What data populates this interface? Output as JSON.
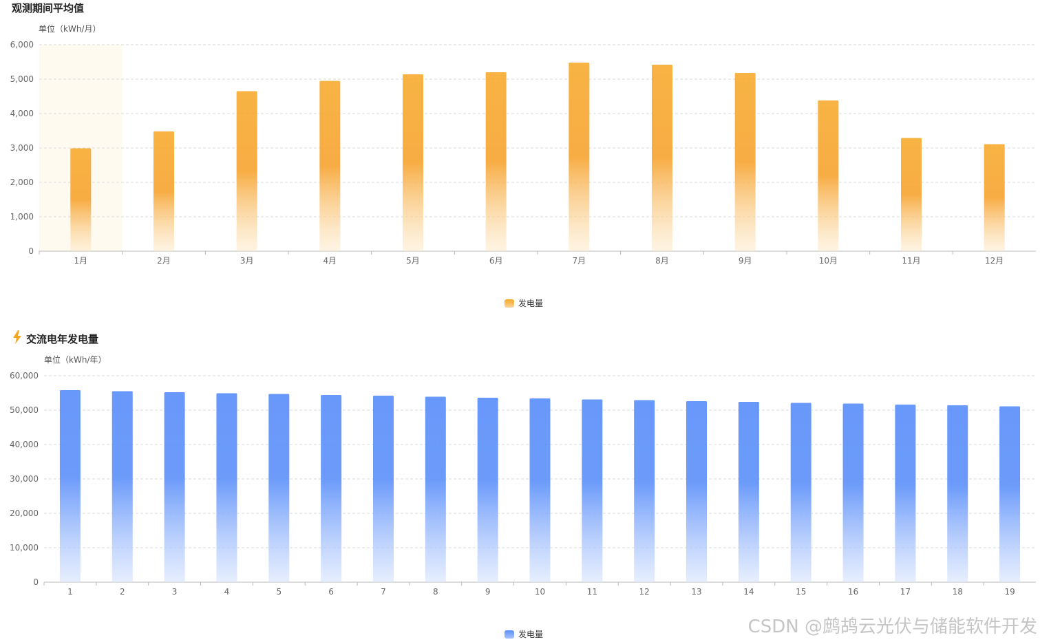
{
  "sections": [
    {
      "title": "观测期间平均值"
    },
    {
      "title": "交流电年发电量"
    }
  ],
  "icons": {
    "section2": "lightning-bolt-icon"
  },
  "colors": {
    "orange": "#f6a623",
    "blue": "#5b8ff9",
    "grid": "#d9d9d9",
    "highlight": "#fffaf0"
  },
  "chart_data": [
    {
      "type": "bar",
      "unit_label": "单位（kWh/月）",
      "categories": [
        "1月",
        "2月",
        "3月",
        "4月",
        "5月",
        "6月",
        "7月",
        "8月",
        "9月",
        "10月",
        "11月",
        "12月"
      ],
      "series": [
        {
          "name": "发电量",
          "values": [
            2990,
            3480,
            4650,
            4950,
            5140,
            5200,
            5480,
            5420,
            5180,
            4380,
            3290,
            3110
          ]
        }
      ],
      "ylim": [
        0,
        6000
      ],
      "yticks": [
        "0",
        "1,000",
        "2,000",
        "3,000",
        "4,000",
        "5,000",
        "6,000"
      ],
      "highlighted_category": "1月",
      "grid": true,
      "legend": "bottom-center"
    },
    {
      "type": "bar",
      "unit_label": "单位（kWh/年）",
      "categories": [
        "1",
        "2",
        "3",
        "4",
        "5",
        "6",
        "7",
        "8",
        "9",
        "10",
        "11",
        "12",
        "13",
        "14",
        "15",
        "16",
        "17",
        "18",
        "19"
      ],
      "series": [
        {
          "name": "发电量",
          "values": [
            55800,
            55500,
            55200,
            54900,
            54700,
            54400,
            54200,
            53900,
            53600,
            53400,
            53100,
            52900,
            52600,
            52400,
            52100,
            51900,
            51600,
            51400,
            51100
          ]
        }
      ],
      "ylim": [
        0,
        60000
      ],
      "yticks": [
        "0",
        "10,000",
        "20,000",
        "30,000",
        "40,000",
        "50,000",
        "60,000"
      ],
      "grid": true,
      "legend": "bottom-center"
    }
  ],
  "watermark": "CSDN @鹧鸪云光伏与储能软件开发"
}
